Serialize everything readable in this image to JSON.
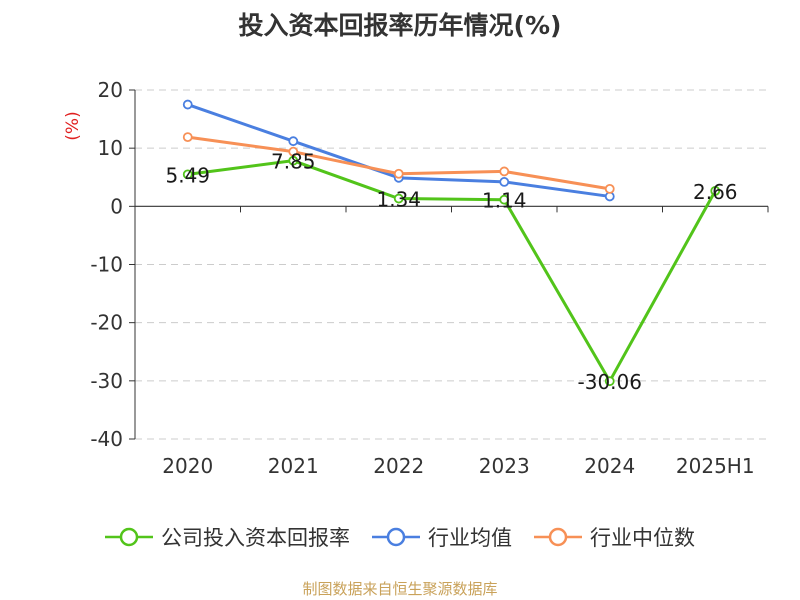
{
  "chart_data": {
    "type": "line",
    "title": "投入资本回报率历年情况(%)",
    "ylabel": "(%)",
    "categories": [
      "2020",
      "2021",
      "2022",
      "2023",
      "2024",
      "2025H1"
    ],
    "ylim": [
      -40,
      20
    ],
    "yticks": [
      20,
      10,
      0,
      -10,
      -20,
      -30,
      -40
    ],
    "grid": true,
    "legend_position": "bottom",
    "series": [
      {
        "name": "公司投入资本回报率",
        "color": "#52c41a",
        "values": [
          5.49,
          7.85,
          1.34,
          1.14,
          -30.06,
          2.66
        ],
        "labels": [
          "5.49",
          "7.85",
          "1.34",
          "1.14",
          "-30.06",
          "2.66"
        ]
      },
      {
        "name": "行业均值",
        "color": "#4a7fe0",
        "values": [
          17.5,
          11.2,
          4.9,
          4.2,
          1.7,
          null
        ]
      },
      {
        "name": "行业中位数",
        "color": "#f79056",
        "values": [
          11.9,
          9.4,
          5.6,
          6.0,
          3.0,
          null
        ]
      }
    ]
  },
  "source": "制图数据来自恒生聚源数据库"
}
